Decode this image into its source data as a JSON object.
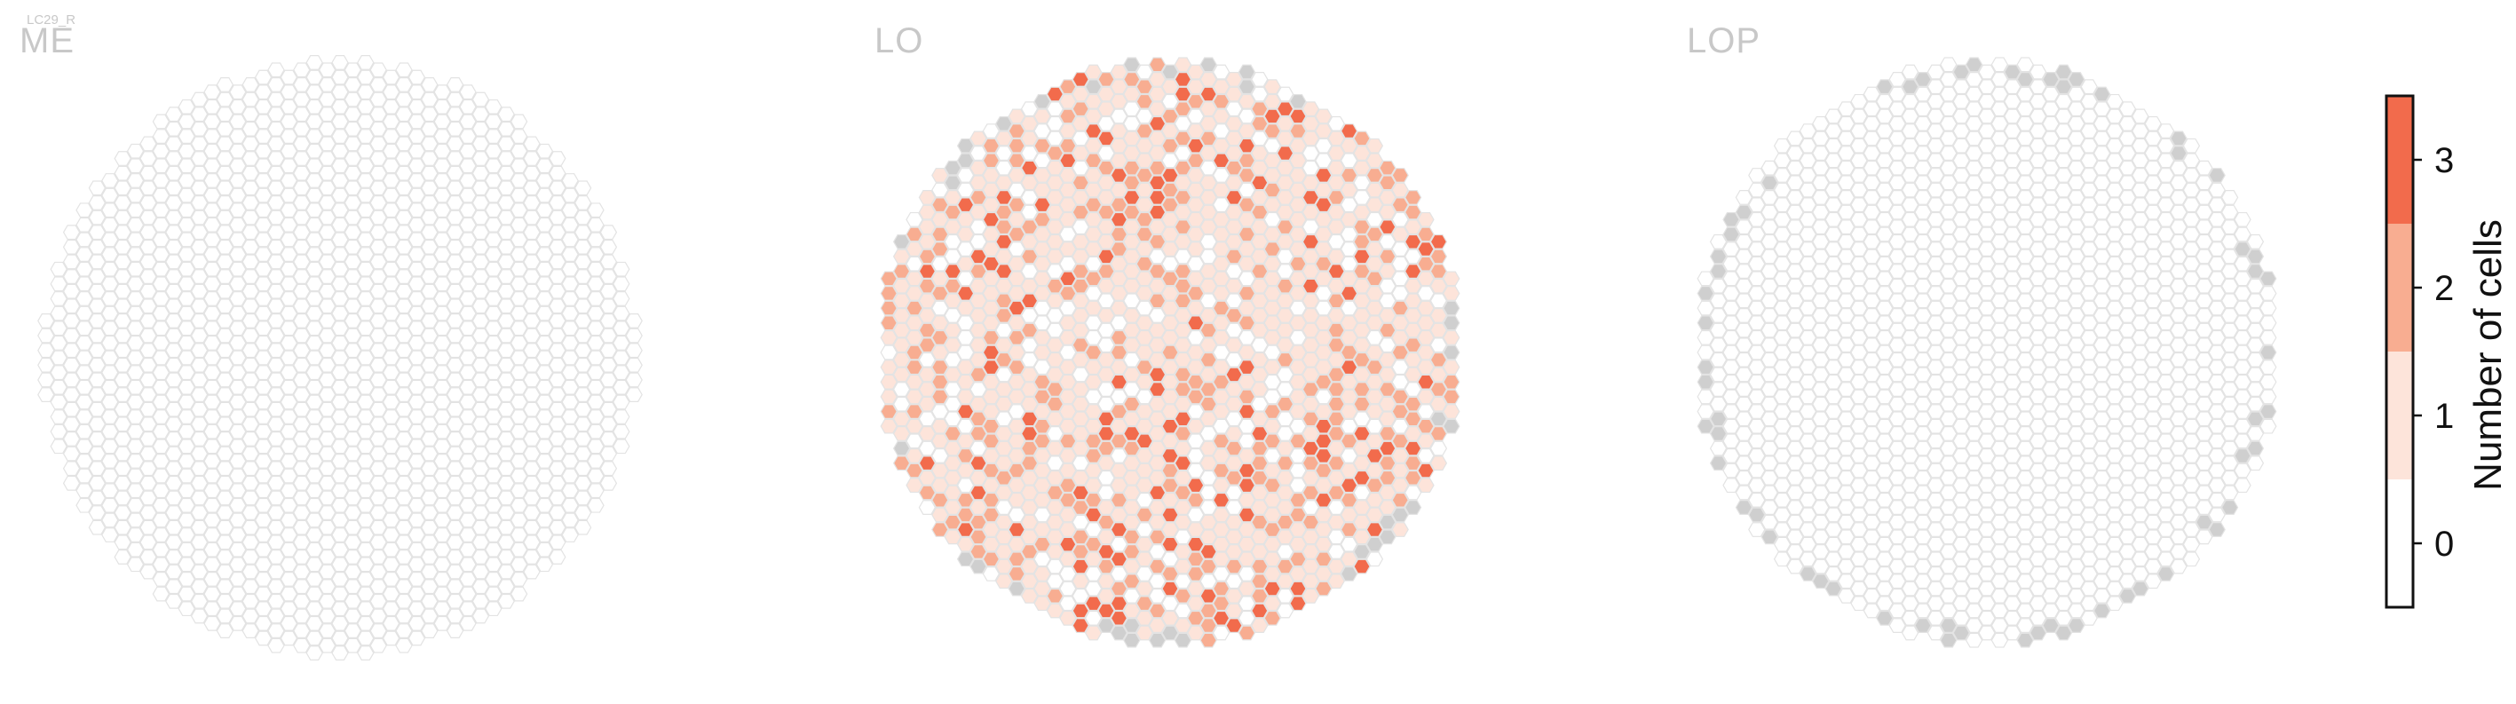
{
  "header": {
    "small_label": "LC29_R"
  },
  "panels": [
    {
      "id": "me",
      "title": "ME",
      "seed": 11,
      "count_probs": [
        1.0,
        0.0,
        0.0,
        0.0
      ],
      "edge_gray_prob": 0.0
    },
    {
      "id": "lo",
      "title": "LO",
      "seed": 29,
      "count_probs": [
        0.18,
        0.5,
        0.24,
        0.08
      ],
      "edge_gray_prob": 0.22
    },
    {
      "id": "lop",
      "title": "LOP",
      "seed": 7,
      "count_probs": [
        1.0,
        0.0,
        0.0,
        0.0
      ],
      "edge_gray_prob": 0.45
    }
  ],
  "chart_data": {
    "type": "heatmap",
    "title": "",
    "panel_titles": [
      "ME",
      "LO",
      "LOP"
    ],
    "value_description": "Hexagonal column map; each hexagon coloured by number of cells (0–3); gray = outside-of-range columns",
    "colorbar": {
      "label": "Number of cells",
      "ticks": [
        0,
        1,
        2,
        3
      ],
      "range": [
        -0.5,
        3.5
      ],
      "colors": [
        "#ffffff",
        "#fde4da",
        "#f8ad91",
        "#f26b4c"
      ]
    },
    "summary_counts_estimate": {
      "ME": {
        "0": 700,
        "1": 0,
        "2": 0,
        "3": 0
      },
      "LO": {
        "0": 150,
        "1": 330,
        "2": 160,
        "3": 45
      },
      "LOP": {
        "0": 700,
        "1": 0,
        "2": 0,
        "3": 0
      }
    },
    "colors": {
      "zero_fill": "#ffffff",
      "hex_stroke": "#e3e3e3",
      "gray_fill": "#cfcfcf"
    }
  }
}
